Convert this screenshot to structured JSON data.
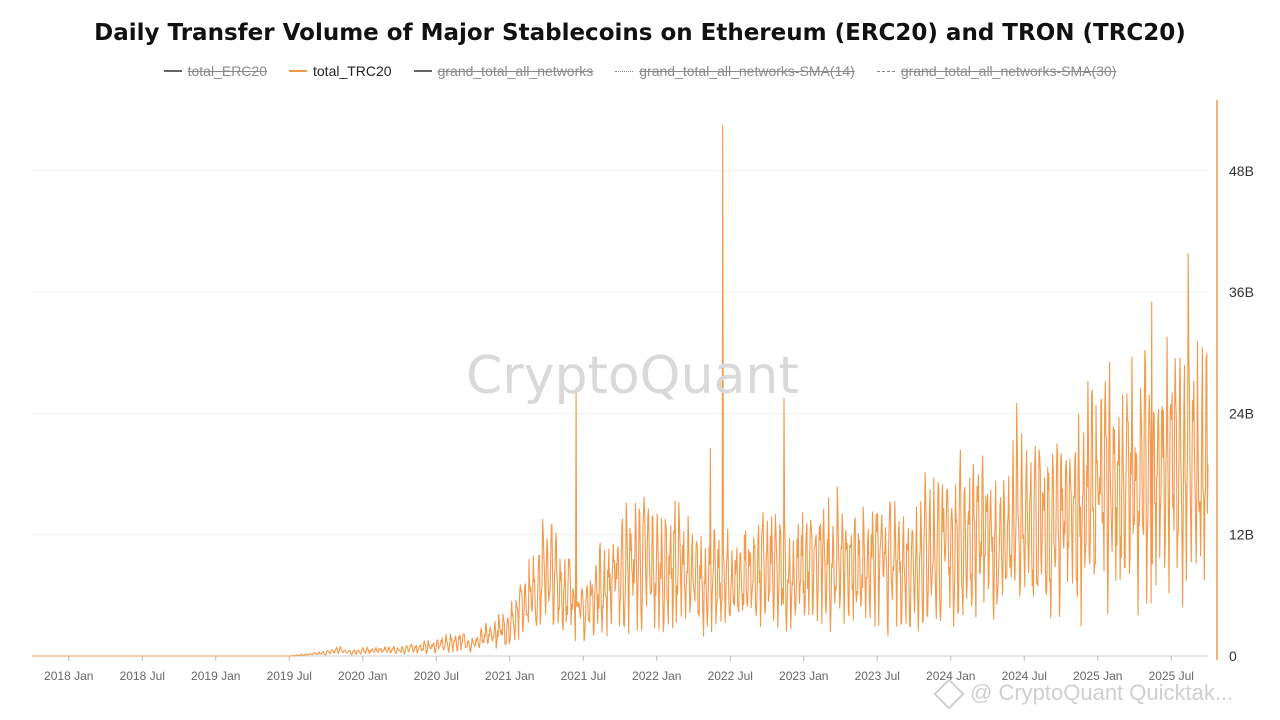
{
  "chart_data": {
    "type": "line",
    "title": "Daily Transfer Volume of Major Stablecoins on Ethereum (ERC20) and TRON (TRC20)",
    "legend": [
      {
        "name": "total_ERC20",
        "visible": false,
        "style": "solid",
        "color": "#666666"
      },
      {
        "name": "total_TRC20",
        "visible": true,
        "style": "solid",
        "color": "#f2994a"
      },
      {
        "name": "grand_total_all_networks",
        "visible": false,
        "style": "solid",
        "color": "#666666"
      },
      {
        "name": "grand_total_all_networks-SMA(14)",
        "visible": false,
        "style": "dotted",
        "color": "#888888"
      },
      {
        "name": "grand_total_all_networks-SMA(30)",
        "visible": false,
        "style": "dashed",
        "color": "#888888"
      }
    ],
    "x_tick_labels": [
      "2018 Jan",
      "2018 Jul",
      "2019 Jan",
      "2019 Jul",
      "2020 Jan",
      "2020 Jul",
      "2021 Jan",
      "2021 Jul",
      "2022 Jan",
      "2022 Jul",
      "2023 Jan",
      "2023 Jul",
      "2024 Jan",
      "2024 Jul",
      "2025 Jan",
      "2025 Jul"
    ],
    "xlim": [
      "2017-10",
      "2025-10"
    ],
    "y_tick_labels": [
      "0",
      "12B",
      "24B",
      "36B",
      "48B"
    ],
    "y_ticks": [
      0,
      12,
      24,
      36,
      48
    ],
    "ylim": [
      0,
      55
    ],
    "y_unit": "B",
    "grid": "horizontal",
    "series": [
      {
        "name": "total_TRC20",
        "color": "#f2994a",
        "x": [
          "2017-10",
          "2018-01",
          "2018-07",
          "2019-01",
          "2019-07",
          "2019-10",
          "2019-11",
          "2019-12",
          "2020-01",
          "2020-04",
          "2020-07",
          "2020-09",
          "2020-10",
          "2020-11",
          "2020-12",
          "2021-01",
          "2021-02",
          "2021-03",
          "2021-04",
          "2021-05",
          "2021-06",
          "2021-07",
          "2021-08",
          "2021-09",
          "2021-10",
          "2021-11",
          "2021-12",
          "2022-01",
          "2022-02",
          "2022-03",
          "2022-04",
          "2022-05",
          "2022-06",
          "2022-07",
          "2022-08",
          "2022-09",
          "2022-10",
          "2022-11",
          "2022-12",
          "2023-01",
          "2023-02",
          "2023-03",
          "2023-04",
          "2023-05",
          "2023-06",
          "2023-07",
          "2023-08",
          "2023-09",
          "2023-10",
          "2023-11",
          "2023-12",
          "2024-01",
          "2024-02",
          "2024-03",
          "2024-04",
          "2024-05",
          "2024-06",
          "2024-07",
          "2024-08",
          "2024-09",
          "2024-10",
          "2024-11",
          "2024-12",
          "2025-01",
          "2025-02",
          "2025-03",
          "2025-04",
          "2025-05",
          "2025-06",
          "2025-07",
          "2025-08",
          "2025-09",
          "2025-10"
        ],
        "values": [
          0.0,
          0.0,
          0.0,
          0.0,
          0.0,
          0.3,
          0.6,
          0.4,
          0.5,
          0.6,
          1.0,
          1.5,
          1.2,
          1.8,
          2.3,
          3.0,
          5.5,
          6.5,
          8.5,
          7.0,
          6.0,
          4.0,
          6.5,
          6.8,
          8.5,
          9.0,
          9.5,
          8.2,
          8.8,
          9.0,
          7.0,
          7.5,
          7.0,
          7.2,
          7.8,
          8.3,
          8.5,
          8.0,
          7.5,
          8.5,
          8.8,
          9.2,
          9.5,
          8.7,
          9.0,
          9.5,
          9.0,
          8.8,
          9.2,
          10.5,
          10.5,
          11.0,
          11.5,
          12.0,
          11.2,
          10.8,
          12.0,
          12.5,
          12.8,
          12.0,
          12.5,
          14.0,
          15.0,
          16.0,
          17.0,
          16.5,
          17.0,
          17.8,
          18.0,
          18.5,
          17.5,
          18.0,
          18.5
        ],
        "peaks": [
          {
            "x": "2021-06",
            "value": 26.5
          },
          {
            "x": "2022-05",
            "value": 20.5
          },
          {
            "x": "2022-06",
            "value": 52.5
          },
          {
            "x": "2022-11",
            "value": 25.5
          },
          {
            "x": "2024-06",
            "value": 25.0
          },
          {
            "x": "2025-05",
            "value": 35.0
          },
          {
            "x": "2025-08",
            "value": 39.8
          }
        ]
      }
    ]
  },
  "watermark": "CryptoQuant",
  "credit": "@ CryptoQuant Quicktak..."
}
